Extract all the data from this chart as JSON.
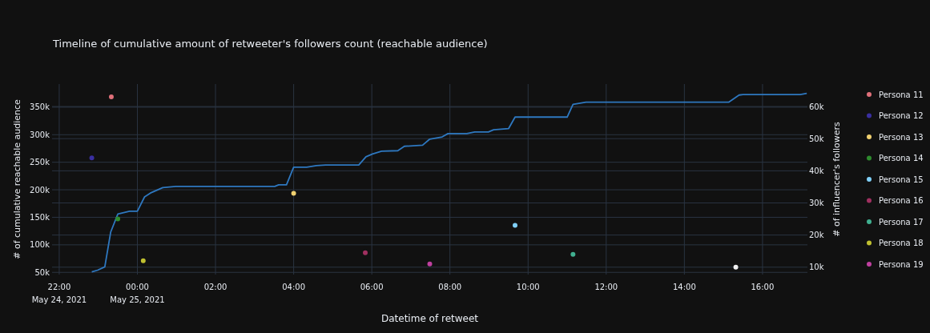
{
  "chart_data": {
    "type": "line",
    "title": "Timeline of cumulative amount of retweeter's followers count (reachable audience)",
    "xlabel": "Datetime of retweet",
    "ylabel": "# of cumulative reachable audience",
    "y2label": "# of influencer's followers",
    "xlim": [
      "2021-05-24T21:49",
      "2021-05-25T17:09"
    ],
    "xticks": [
      {
        "value": "2021-05-24T22:00",
        "label": "22:00\nMay 24, 2021"
      },
      {
        "value": "2021-05-25T00:00",
        "label": "00:00\nMay 25, 2021"
      },
      {
        "value": "2021-05-25T02:00",
        "label": "02:00"
      },
      {
        "value": "2021-05-25T04:00",
        "label": "04:00"
      },
      {
        "value": "2021-05-25T06:00",
        "label": "06:00"
      },
      {
        "value": "2021-05-25T08:00",
        "label": "08:00"
      },
      {
        "value": "2021-05-25T10:00",
        "label": "10:00"
      },
      {
        "value": "2021-05-25T12:00",
        "label": "12:00"
      },
      {
        "value": "2021-05-25T14:00",
        "label": "14:00"
      },
      {
        "value": "2021-05-25T16:00",
        "label": "16:00"
      }
    ],
    "ylim": [
      46000,
      392000
    ],
    "yticks": [
      {
        "value": 50000,
        "label": "50k"
      },
      {
        "value": 100000,
        "label": "100k"
      },
      {
        "value": 150000,
        "label": "150k"
      },
      {
        "value": 200000,
        "label": "200k"
      },
      {
        "value": 250000,
        "label": "250k"
      },
      {
        "value": 300000,
        "label": "300k"
      },
      {
        "value": 350000,
        "label": "350k"
      }
    ],
    "y2lim": [
      7700,
      67000
    ],
    "y2ticks": [
      {
        "value": 10000,
        "label": "10k"
      },
      {
        "value": 20000,
        "label": "20k"
      },
      {
        "value": 30000,
        "label": "30k"
      },
      {
        "value": 40000,
        "label": "40k"
      },
      {
        "value": 50000,
        "label": "50k"
      },
      {
        "value": 60000,
        "label": "60k"
      }
    ],
    "grid": true,
    "legend": "right",
    "marker": "circle",
    "series": [
      {
        "color": "#2e78c0",
        "marker": "none",
        "x": [
          "2021-05-24T22:50",
          "2021-05-24T22:59",
          "2021-05-24T23:10",
          "2021-05-24T23:19",
          "2021-05-24T23:30",
          "2021-05-24T23:48",
          "2021-05-25T00:00",
          "2021-05-25T00:11",
          "2021-05-25T00:20",
          "2021-05-25T00:39",
          "2021-05-25T00:59",
          "2021-05-25T03:31",
          "2021-05-25T03:37",
          "2021-05-25T03:49",
          "2021-05-25T04:00",
          "2021-05-25T04:20",
          "2021-05-25T04:35",
          "2021-05-25T04:49",
          "2021-05-25T05:40",
          "2021-05-25T05:51",
          "2021-05-25T06:01",
          "2021-05-25T06:15",
          "2021-05-25T06:40",
          "2021-05-25T06:50",
          "2021-05-25T07:18",
          "2021-05-25T07:29",
          "2021-05-25T07:48",
          "2021-05-25T07:57",
          "2021-05-25T08:26",
          "2021-05-25T08:38",
          "2021-05-25T08:59",
          "2021-05-25T09:07",
          "2021-05-25T09:30",
          "2021-05-25T09:40",
          "2021-05-25T11:00",
          "2021-05-25T11:09",
          "2021-05-25T11:29",
          "2021-05-25T15:08",
          "2021-05-25T15:24",
          "2021-05-25T15:30",
          "2021-05-25T16:58",
          "2021-05-25T17:08"
        ],
        "values": [
          51000,
          54000,
          60000,
          123000,
          156000,
          161000,
          161000,
          187000,
          194000,
          204000,
          206000,
          206000,
          209000,
          209000,
          241000,
          241000,
          244000,
          245000,
          245000,
          260000,
          265000,
          270000,
          271000,
          279000,
          281000,
          292000,
          296000,
          302000,
          302000,
          305000,
          305000,
          309000,
          311000,
          332000,
          332000,
          355000,
          359000,
          359000,
          372000,
          373000,
          373000,
          375000
        ]
      },
      {
        "type": "scatter",
        "axis": "y2",
        "name": "Persona 11",
        "color": "#e0707a",
        "x": [
          "2021-05-24T23:20"
        ],
        "values": [
          63000
        ]
      },
      {
        "type": "scatter",
        "axis": "y2",
        "name": "Persona 12",
        "color": "#3a2fa0",
        "x": [
          "2021-05-24T22:50"
        ],
        "values": [
          44000
        ]
      },
      {
        "type": "scatter",
        "axis": "y2",
        "name": "Persona 13",
        "color": "#f0d070",
        "x": [
          "2021-05-25T04:00"
        ],
        "values": [
          33000
        ]
      },
      {
        "type": "scatter",
        "axis": "y2",
        "name": "Persona 14",
        "color": "#2e8b2e",
        "x": [
          "2021-05-24T23:30"
        ],
        "values": [
          25000
        ]
      },
      {
        "type": "scatter",
        "axis": "y2",
        "name": "Persona 15",
        "color": "#80d0f8",
        "x": [
          "2021-05-25T09:40"
        ],
        "values": [
          23000
        ]
      },
      {
        "type": "scatter",
        "axis": "y2",
        "name": "Persona 16",
        "color": "#a03060",
        "x": [
          "2021-05-25T05:50"
        ],
        "values": [
          14500
        ]
      },
      {
        "type": "scatter",
        "axis": "y2",
        "name": "Persona 17",
        "color": "#40b090",
        "x": [
          "2021-05-25T11:09"
        ],
        "values": [
          14000
        ]
      },
      {
        "type": "scatter",
        "axis": "y2",
        "name": "Persona 18",
        "color": "#c0c030",
        "x": [
          "2021-05-25T00:09"
        ],
        "values": [
          12000
        ]
      },
      {
        "type": "scatter",
        "axis": "y2",
        "name": "Persona 19",
        "color": "#c040a0",
        "x": [
          "2021-05-25T07:29"
        ],
        "values": [
          11000
        ]
      },
      {
        "type": "scatter",
        "axis": "y2",
        "color": "#f0f0f0",
        "x": [
          "2021-05-25T15:19"
        ],
        "values": [
          10000
        ]
      }
    ]
  }
}
